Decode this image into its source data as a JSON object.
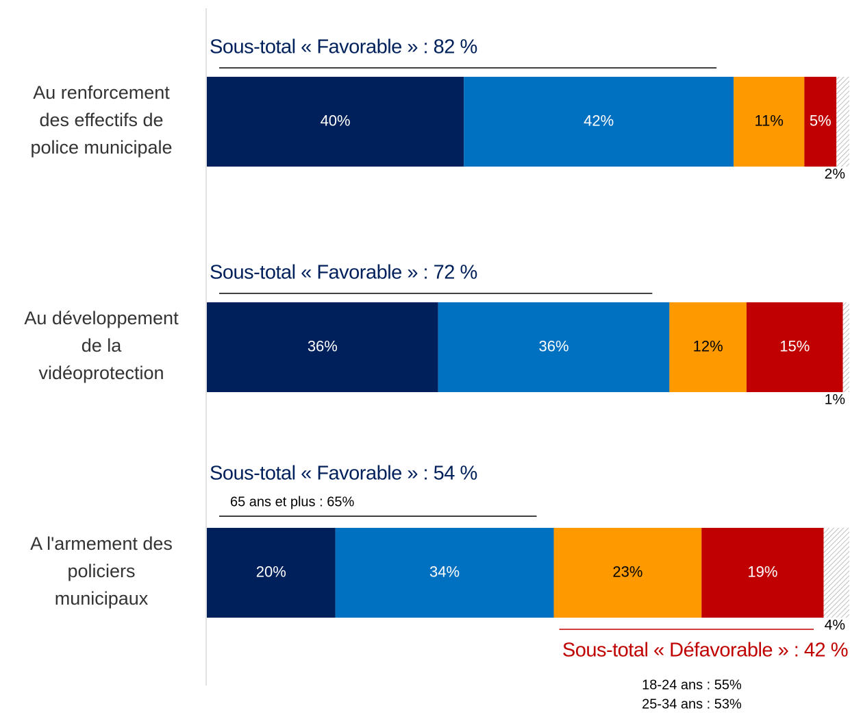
{
  "chart_data": {
    "type": "bar",
    "orientation": "horizontal",
    "stacked": true,
    "categories": [
      [
        "Au renforcement",
        "des effectifs de",
        "police municipale"
      ],
      [
        "Au développement",
        "de la",
        "vidéoprotection"
      ],
      [
        "A l'armement des",
        "policiers",
        "municipaux"
      ]
    ],
    "xlim": [
      0,
      100
    ],
    "series": [
      {
        "color": "#00205b",
        "label_color": "#ffffff",
        "values": [
          40,
          36,
          20
        ],
        "value_labels": [
          "40%",
          "36%",
          "20%"
        ]
      },
      {
        "color": "#0070c0",
        "label_color": "#ffffff",
        "values": [
          42,
          36,
          34
        ],
        "value_labels": [
          "42%",
          "36%",
          "34%"
        ]
      },
      {
        "color": "#ff9900",
        "label_color": "#000000",
        "values": [
          11,
          12,
          23
        ],
        "value_labels": [
          "11%",
          "12%",
          "23%"
        ]
      },
      {
        "color": "#c00000",
        "label_color": "#ffffff",
        "values": [
          5,
          15,
          19
        ],
        "value_labels": [
          "5%",
          "15%",
          "19%"
        ]
      },
      {
        "color": "#bfbfbf",
        "hatched": true,
        "label_color": "#000000",
        "values": [
          2,
          1,
          4
        ],
        "value_labels": [
          "2%",
          "1%",
          "4%"
        ]
      }
    ],
    "favorable_subtotals": [
      "Sous-total « Favorable » : 82 %",
      "Sous-total « Favorable » : 72 %",
      "Sous-total « Favorable » : 54 %"
    ],
    "favorable_note": "65 ans et plus : 65%",
    "unfavorable_subtotal": "Sous-total « Défavorable » : 42 %",
    "unfavorable_notes": [
      "18-24 ans : 55%",
      "25-34 ans : 53%"
    ]
  }
}
